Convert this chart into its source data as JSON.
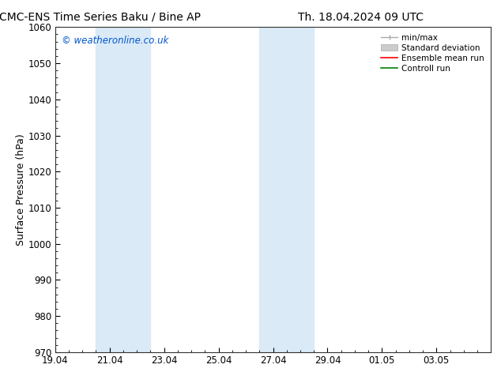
{
  "title_left": "CMC-ENS Time Series Baku / Bine AP",
  "title_right": "Th. 18.04.2024 09 UTC",
  "ylabel": "Surface Pressure (hPa)",
  "ylim": [
    970,
    1060
  ],
  "yticks": [
    970,
    980,
    990,
    1000,
    1010,
    1020,
    1030,
    1040,
    1050,
    1060
  ],
  "xtick_labels": [
    "19.04",
    "21.04",
    "23.04",
    "25.04",
    "27.04",
    "29.04",
    "01.05",
    "03.05"
  ],
  "xlim": [
    0,
    16
  ],
  "xtick_positions": [
    0,
    2,
    4,
    6,
    8,
    10,
    12,
    14
  ],
  "shade_bands": [
    {
      "x_start": 1.5,
      "x_end": 3.5
    },
    {
      "x_start": 7.5,
      "x_end": 9.5
    }
  ],
  "shade_color": "#daeaf6",
  "background_color": "#ffffff",
  "watermark_text": "© weatheronline.co.uk",
  "watermark_color": "#0055cc",
  "legend_labels": [
    "min/max",
    "Standard deviation",
    "Ensemble mean run",
    "Controll run"
  ],
  "legend_colors_line": [
    "#aaaaaa",
    "#cccccc",
    "#ff0000",
    "#008000"
  ],
  "title_fontsize": 10,
  "tick_fontsize": 8.5,
  "ylabel_fontsize": 9
}
